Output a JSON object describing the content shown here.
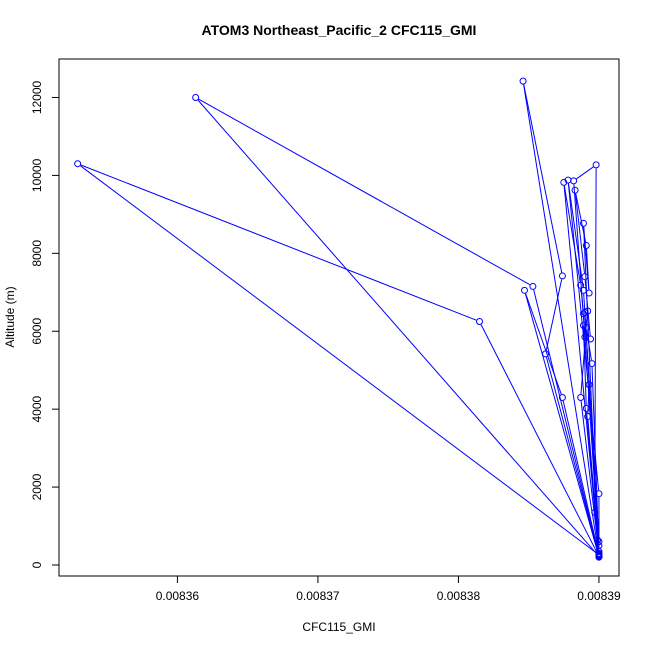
{
  "chart_data": {
    "type": "line",
    "title": "ATOM3 Northeast_Pacific_2 CFC115_GMI",
    "xlabel": "CFC115_GMI",
    "ylabel": "Altitude (m)",
    "xlim": [
      0.008352,
      0.008391
    ],
    "ylim": [
      0,
      12500
    ],
    "x_ticks": [
      0.00836,
      0.00837,
      0.00838,
      0.00839
    ],
    "x_tick_labels": [
      "0.00836",
      "0.00837",
      "0.00838",
      "0.00839"
    ],
    "y_ticks": [
      0,
      2000,
      4000,
      6000,
      8000,
      10000,
      12000
    ],
    "y_tick_labels": [
      "0",
      "2000",
      "4000",
      "6000",
      "8000",
      "10000",
      "12000"
    ],
    "grid": false,
    "color": "#0000ff",
    "marker": "open-circle",
    "series": [
      {
        "x": [
          0.00839,
          0.0083529,
          0.0083815,
          0.00839,
          0.0083613,
          0.0083853,
          0.00839,
          0.0083847,
          0.0083874,
          0.00839,
          0.0083846,
          0.0083874,
          0.0083862,
          0.00839,
          0.00839,
          0.0083875,
          0.0083887,
          0.0083889,
          0.00839,
          0.0083887,
          0.0083891,
          0.0083895,
          0.00839,
          0.00839,
          0.0083878,
          0.0083889,
          0.00839,
          0.008389,
          0.0083892,
          0.008389,
          0.0083882,
          0.0083898,
          0.0083897,
          0.00839,
          0.0083893,
          0.0083892,
          0.00839,
          0.0083891,
          0.0083889,
          0.0083894,
          0.008389,
          0.0083883,
          0.0083891,
          0.0083893,
          0.0083889,
          0.0083899,
          0.00839
        ],
        "y": [
          260,
          10300,
          6250,
          220,
          12000,
          7150,
          210,
          7050,
          4300,
          250,
          12420,
          7420,
          5420,
          230,
          280,
          9820,
          7180,
          6450,
          300,
          4300,
          6100,
          5170,
          350,
          1830,
          9880,
          7050,
          600,
          6480,
          6520,
          5850,
          9860,
          10270,
          1350,
          500,
          4630,
          3810,
          200,
          4020,
          6150,
          5800,
          7400,
          9620,
          8200,
          6980,
          8770,
          640,
          220
        ]
      }
    ]
  }
}
